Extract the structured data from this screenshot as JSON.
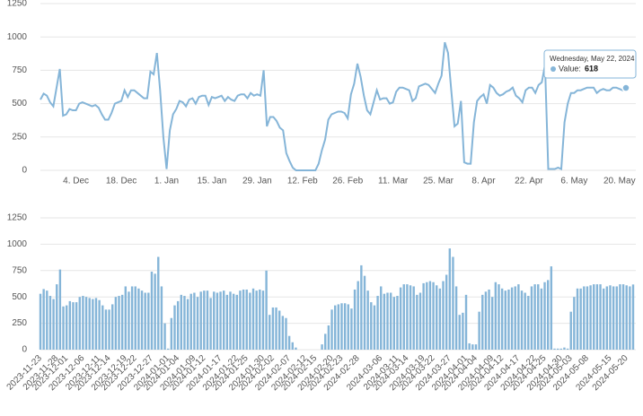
{
  "chart_data": [
    {
      "type": "line",
      "color": "#85b5d8",
      "grid": true,
      "xlim": [
        "2023-11-23",
        "2024-05-22"
      ],
      "ylim": [
        0,
        1250
      ],
      "yticks": [
        0,
        250,
        500,
        750,
        1000,
        1250
      ],
      "xticks": [
        {
          "value": "2023-12-04",
          "label": "4. Dec"
        },
        {
          "value": "2023-12-18",
          "label": "18. Dec"
        },
        {
          "value": "2024-01-01",
          "label": "1. Jan"
        },
        {
          "value": "2024-01-15",
          "label": "15. Jan"
        },
        {
          "value": "2024-01-29",
          "label": "29. Jan"
        },
        {
          "value": "2024-02-12",
          "label": "12. Feb"
        },
        {
          "value": "2024-02-26",
          "label": "26. Feb"
        },
        {
          "value": "2024-03-11",
          "label": "11. Mar"
        },
        {
          "value": "2024-03-25",
          "label": "25. Mar"
        },
        {
          "value": "2024-04-08",
          "label": "8. Apr"
        },
        {
          "value": "2024-04-22",
          "label": "22. Apr"
        },
        {
          "value": "2024-05-06",
          "label": "6. May"
        },
        {
          "value": "2024-05-20",
          "label": "20. May"
        }
      ],
      "tooltip": {
        "title": "Wednesday, May 22, 2024",
        "label": "Value:"
      },
      "x": [
        "2023-11-23",
        "2023-11-24",
        "2023-11-25",
        "2023-11-26",
        "2023-11-27",
        "2023-11-28",
        "2023-11-29",
        "2023-11-30",
        "2023-12-01",
        "2023-12-02",
        "2023-12-03",
        "2023-12-04",
        "2023-12-05",
        "2023-12-06",
        "2023-12-07",
        "2023-12-08",
        "2023-12-09",
        "2023-12-10",
        "2023-12-11",
        "2023-12-12",
        "2023-12-13",
        "2023-12-14",
        "2023-12-15",
        "2023-12-16",
        "2023-12-17",
        "2023-12-18",
        "2023-12-19",
        "2023-12-20",
        "2023-12-21",
        "2023-12-22",
        "2023-12-23",
        "2023-12-24",
        "2023-12-25",
        "2023-12-26",
        "2023-12-27",
        "2023-12-28",
        "2023-12-29",
        "2023-12-30",
        "2023-12-31",
        "2024-01-01",
        "2024-01-02",
        "2024-01-03",
        "2024-01-04",
        "2024-01-05",
        "2024-01-06",
        "2024-01-07",
        "2024-01-08",
        "2024-01-09",
        "2024-01-10",
        "2024-01-11",
        "2024-01-12",
        "2024-01-13",
        "2024-01-14",
        "2024-01-15",
        "2024-01-16",
        "2024-01-17",
        "2024-01-18",
        "2024-01-19",
        "2024-01-20",
        "2024-01-21",
        "2024-01-22",
        "2024-01-23",
        "2024-01-24",
        "2024-01-25",
        "2024-01-26",
        "2024-01-27",
        "2024-01-28",
        "2024-01-29",
        "2024-01-30",
        "2024-01-31",
        "2024-02-01",
        "2024-02-02",
        "2024-02-03",
        "2024-02-04",
        "2024-02-05",
        "2024-02-06",
        "2024-02-07",
        "2024-02-08",
        "2024-02-09",
        "2024-02-10",
        "2024-02-11",
        "2024-02-12",
        "2024-02-13",
        "2024-02-14",
        "2024-02-15",
        "2024-02-16",
        "2024-02-17",
        "2024-02-18",
        "2024-02-19",
        "2024-02-20",
        "2024-02-21",
        "2024-02-22",
        "2024-02-23",
        "2024-02-24",
        "2024-02-25",
        "2024-02-26",
        "2024-02-27",
        "2024-02-28",
        "2024-02-29",
        "2024-03-01",
        "2024-03-02",
        "2024-03-03",
        "2024-03-04",
        "2024-03-05",
        "2024-03-06",
        "2024-03-07",
        "2024-03-08",
        "2024-03-09",
        "2024-03-10",
        "2024-03-11",
        "2024-03-12",
        "2024-03-13",
        "2024-03-14",
        "2024-03-15",
        "2024-03-16",
        "2024-03-17",
        "2024-03-18",
        "2024-03-19",
        "2024-03-20",
        "2024-03-21",
        "2024-03-22",
        "2024-03-23",
        "2024-03-24",
        "2024-03-25",
        "2024-03-26",
        "2024-03-27",
        "2024-03-28",
        "2024-03-29",
        "2024-03-30",
        "2024-03-31",
        "2024-04-01",
        "2024-04-02",
        "2024-04-03",
        "2024-04-04",
        "2024-04-05",
        "2024-04-06",
        "2024-04-07",
        "2024-04-08",
        "2024-04-09",
        "2024-04-10",
        "2024-04-11",
        "2024-04-12",
        "2024-04-13",
        "2024-04-14",
        "2024-04-15",
        "2024-04-16",
        "2024-04-17",
        "2024-04-18",
        "2024-04-19",
        "2024-04-20",
        "2024-04-21",
        "2024-04-22",
        "2024-04-23",
        "2024-04-24",
        "2024-04-25",
        "2024-04-26",
        "2024-04-27",
        "2024-04-28",
        "2024-04-29",
        "2024-04-30",
        "2024-05-01",
        "2024-05-02",
        "2024-05-03",
        "2024-05-04",
        "2024-05-05",
        "2024-05-06",
        "2024-05-07",
        "2024-05-08",
        "2024-05-09",
        "2024-05-10",
        "2024-05-11",
        "2024-05-12",
        "2024-05-13",
        "2024-05-14",
        "2024-05-15",
        "2024-05-16",
        "2024-05-17",
        "2024-05-18",
        "2024-05-19",
        "2024-05-20",
        "2024-05-21",
        "2024-05-22"
      ],
      "values": [
        530,
        575,
        560,
        510,
        480,
        620,
        760,
        410,
        420,
        460,
        450,
        450,
        500,
        510,
        500,
        490,
        480,
        490,
        470,
        420,
        380,
        380,
        430,
        500,
        510,
        520,
        600,
        550,
        600,
        600,
        580,
        560,
        540,
        540,
        740,
        720,
        880,
        600,
        250,
        10,
        300,
        420,
        460,
        520,
        510,
        480,
        530,
        540,
        500,
        550,
        560,
        560,
        490,
        550,
        540,
        550,
        560,
        520,
        550,
        530,
        520,
        560,
        570,
        570,
        540,
        580,
        560,
        570,
        560,
        750,
        330,
        400,
        400,
        370,
        320,
        300,
        130,
        70,
        20,
        0,
        0,
        0,
        0,
        0,
        0,
        0,
        50,
        150,
        230,
        380,
        420,
        430,
        440,
        440,
        430,
        390,
        570,
        650,
        800,
        700,
        560,
        450,
        420,
        510,
        600,
        530,
        540,
        540,
        500,
        510,
        590,
        620,
        620,
        610,
        600,
        520,
        540,
        630,
        640,
        650,
        640,
        610,
        580,
        650,
        710,
        960,
        880,
        600,
        330,
        350,
        520,
        60,
        50,
        50,
        360,
        520,
        550,
        570,
        500,
        640,
        620,
        580,
        560,
        570,
        590,
        600,
        620,
        560,
        540,
        510,
        600,
        620,
        620,
        580,
        640,
        660,
        790,
        10,
        10,
        10,
        20,
        10,
        360,
        500,
        580,
        580,
        600,
        600,
        610,
        620,
        620,
        620,
        580,
        600,
        610,
        600,
        600,
        620,
        620,
        610,
        600,
        618
      ]
    },
    {
      "type": "bar",
      "color": "#85b5d8",
      "grid": true,
      "xlim": [
        "2023-11-23",
        "2024-05-22"
      ],
      "ylim": [
        0,
        1250
      ],
      "yticks": [
        0,
        250,
        500,
        750,
        1000,
        1250
      ],
      "xticks": [
        "2023-11-23",
        "2023-11-28",
        "2023-12-01",
        "2023-12-06",
        "2023-12-11",
        "2023-12-14",
        "2023-12-19",
        "2023-12-22",
        "2023-12-27",
        "2024-01-01",
        "2024-01-04",
        "2024-01-09",
        "2024-01-12",
        "2024-01-17",
        "2024-01-22",
        "2024-01-25",
        "2024-01-30",
        "2024-02-02",
        "2024-02-07",
        "2024-02-12",
        "2024-02-15",
        "2024-02-20",
        "2024-02-23",
        "2024-02-28",
        "2024-03-06",
        "2024-03-11",
        "2024-03-14",
        "2024-03-19",
        "2024-03-22",
        "2024-03-27",
        "2024-04-01",
        "2024-04-04",
        "2024-04-09",
        "2024-04-12",
        "2024-04-17",
        "2024-04-22",
        "2024-04-25",
        "2024-04-30",
        "2024-05-03",
        "2024-05-08",
        "2024-05-15",
        "2024-05-20"
      ],
      "x": [
        "2023-11-23",
        "2023-11-24",
        "2023-11-25",
        "2023-11-26",
        "2023-11-27",
        "2023-11-28",
        "2023-11-29",
        "2023-11-30",
        "2023-12-01",
        "2023-12-02",
        "2023-12-03",
        "2023-12-04",
        "2023-12-05",
        "2023-12-06",
        "2023-12-07",
        "2023-12-08",
        "2023-12-09",
        "2023-12-10",
        "2023-12-11",
        "2023-12-12",
        "2023-12-13",
        "2023-12-14",
        "2023-12-15",
        "2023-12-16",
        "2023-12-17",
        "2023-12-18",
        "2023-12-19",
        "2023-12-20",
        "2023-12-21",
        "2023-12-22",
        "2023-12-23",
        "2023-12-24",
        "2023-12-25",
        "2023-12-26",
        "2023-12-27",
        "2023-12-28",
        "2023-12-29",
        "2023-12-30",
        "2023-12-31",
        "2024-01-01",
        "2024-01-02",
        "2024-01-03",
        "2024-01-04",
        "2024-01-05",
        "2024-01-06",
        "2024-01-07",
        "2024-01-08",
        "2024-01-09",
        "2024-01-10",
        "2024-01-11",
        "2024-01-12",
        "2024-01-13",
        "2024-01-14",
        "2024-01-15",
        "2024-01-16",
        "2024-01-17",
        "2024-01-18",
        "2024-01-19",
        "2024-01-20",
        "2024-01-21",
        "2024-01-22",
        "2024-01-23",
        "2024-01-24",
        "2024-01-25",
        "2024-01-26",
        "2024-01-27",
        "2024-01-28",
        "2024-01-29",
        "2024-01-30",
        "2024-01-31",
        "2024-02-01",
        "2024-02-02",
        "2024-02-03",
        "2024-02-04",
        "2024-02-05",
        "2024-02-06",
        "2024-02-07",
        "2024-02-08",
        "2024-02-09",
        "2024-02-10",
        "2024-02-11",
        "2024-02-12",
        "2024-02-13",
        "2024-02-14",
        "2024-02-15",
        "2024-02-16",
        "2024-02-17",
        "2024-02-18",
        "2024-02-19",
        "2024-02-20",
        "2024-02-21",
        "2024-02-22",
        "2024-02-23",
        "2024-02-24",
        "2024-02-25",
        "2024-02-26",
        "2024-02-27",
        "2024-02-28",
        "2024-02-29",
        "2024-03-01",
        "2024-03-02",
        "2024-03-03",
        "2024-03-04",
        "2024-03-05",
        "2024-03-06",
        "2024-03-07",
        "2024-03-08",
        "2024-03-09",
        "2024-03-10",
        "2024-03-11",
        "2024-03-12",
        "2024-03-13",
        "2024-03-14",
        "2024-03-15",
        "2024-03-16",
        "2024-03-17",
        "2024-03-18",
        "2024-03-19",
        "2024-03-20",
        "2024-03-21",
        "2024-03-22",
        "2024-03-23",
        "2024-03-24",
        "2024-03-25",
        "2024-03-26",
        "2024-03-27",
        "2024-03-28",
        "2024-03-29",
        "2024-03-30",
        "2024-03-31",
        "2024-04-01",
        "2024-04-02",
        "2024-04-03",
        "2024-04-04",
        "2024-04-05",
        "2024-04-06",
        "2024-04-07",
        "2024-04-08",
        "2024-04-09",
        "2024-04-10",
        "2024-04-11",
        "2024-04-12",
        "2024-04-13",
        "2024-04-14",
        "2024-04-15",
        "2024-04-16",
        "2024-04-17",
        "2024-04-18",
        "2024-04-19",
        "2024-04-20",
        "2024-04-21",
        "2024-04-22",
        "2024-04-23",
        "2024-04-24",
        "2024-04-25",
        "2024-04-26",
        "2024-04-27",
        "2024-04-28",
        "2024-04-29",
        "2024-04-30",
        "2024-05-01",
        "2024-05-02",
        "2024-05-03",
        "2024-05-04",
        "2024-05-05",
        "2024-05-06",
        "2024-05-07",
        "2024-05-08",
        "2024-05-09",
        "2024-05-10",
        "2024-05-11",
        "2024-05-12",
        "2024-05-13",
        "2024-05-14",
        "2024-05-15",
        "2024-05-16",
        "2024-05-17",
        "2024-05-18",
        "2024-05-19",
        "2024-05-20",
        "2024-05-21",
        "2024-05-22"
      ],
      "values": [
        530,
        575,
        560,
        510,
        480,
        620,
        760,
        410,
        420,
        460,
        450,
        450,
        500,
        510,
        500,
        490,
        480,
        490,
        470,
        420,
        380,
        380,
        430,
        500,
        510,
        520,
        600,
        550,
        600,
        600,
        580,
        560,
        540,
        540,
        740,
        720,
        880,
        600,
        250,
        10,
        300,
        420,
        460,
        520,
        510,
        480,
        530,
        540,
        500,
        550,
        560,
        560,
        490,
        550,
        540,
        550,
        560,
        520,
        550,
        530,
        520,
        560,
        570,
        570,
        540,
        580,
        560,
        570,
        560,
        750,
        330,
        400,
        400,
        370,
        320,
        300,
        130,
        70,
        20,
        0,
        0,
        0,
        0,
        0,
        0,
        0,
        50,
        150,
        230,
        380,
        420,
        430,
        440,
        440,
        430,
        390,
        570,
        650,
        800,
        700,
        560,
        450,
        420,
        510,
        600,
        530,
        540,
        540,
        500,
        510,
        590,
        620,
        620,
        610,
        600,
        520,
        540,
        630,
        640,
        650,
        640,
        610,
        580,
        650,
        710,
        960,
        880,
        600,
        330,
        350,
        520,
        60,
        50,
        50,
        360,
        520,
        550,
        570,
        500,
        640,
        620,
        580,
        560,
        570,
        590,
        600,
        620,
        560,
        540,
        510,
        600,
        620,
        620,
        580,
        640,
        660,
        790,
        10,
        10,
        10,
        20,
        10,
        360,
        500,
        580,
        580,
        600,
        600,
        610,
        620,
        620,
        620,
        580,
        600,
        610,
        600,
        600,
        620,
        620,
        610,
        600,
        618
      ]
    }
  ]
}
